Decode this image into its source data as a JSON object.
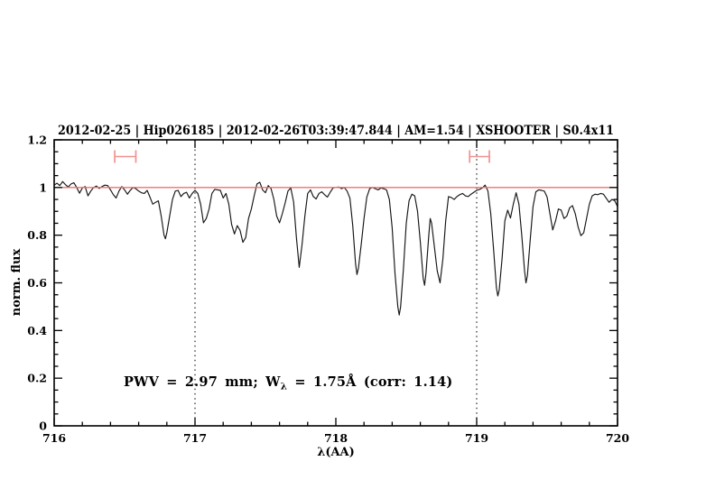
{
  "header": {
    "title": "2012-02-25 | Hip026185 | 2012-02-26T03:39:47.844 | AM=1.54 | XSHOOTER | S0.4x11",
    "title_color": "#0a0ad2",
    "segments": [
      "2012-02-25",
      "Hip026185",
      "2012-02-26T03:39:47.844",
      "AM=1.54",
      "XSHOOTER",
      "S0.4x11"
    ]
  },
  "annotation": {
    "part1": "PWV = 2.97 mm; W",
    "sub": "λ",
    "part2": " = 1.75Å (corr: 1.14)",
    "color": "#0a0ad2",
    "pwv_mm": 2.97,
    "equivalent_width_aa": 1.75,
    "corr": 1.14
  },
  "chart_data": {
    "type": "line",
    "title": "2012-02-25 | Hip026185 | 2012-02-26T03:39:47.844 | AM=1.54 | XSHOOTER | S0.4x11",
    "xlabel": "λ(AA)",
    "ylabel": "norm. flux",
    "xlim": [
      716,
      720
    ],
    "ylim": [
      0,
      1.2
    ],
    "x_ticks": [
      716,
      717,
      718,
      719,
      720
    ],
    "x_tick_labels": [
      "716",
      "717",
      "718",
      "719",
      "720"
    ],
    "x_minor_step": 0.2,
    "y_ticks": [
      0,
      0.2,
      0.4,
      0.6,
      0.8,
      1,
      1.2
    ],
    "y_tick_labels": [
      "0",
      "0.2",
      "0.4",
      "0.6",
      "0.8",
      "1",
      "1.2"
    ],
    "y_minor_step": 0.05,
    "grid": false,
    "legend": null,
    "frame_color": "#000000",
    "series": [
      {
        "name": "normalized-spectrum",
        "type": "line",
        "color": "#151515",
        "points": [
          [
            716.0,
            1.01
          ],
          [
            716.02,
            1.018
          ],
          [
            716.04,
            1.008
          ],
          [
            716.06,
            1.025
          ],
          [
            716.08,
            1.012
          ],
          [
            716.1,
            1.002
          ],
          [
            716.12,
            1.015
          ],
          [
            716.14,
            1.02
          ],
          [
            716.16,
            1.0
          ],
          [
            716.18,
            0.976
          ],
          [
            716.2,
            0.998
          ],
          [
            716.22,
            1.004
          ],
          [
            716.24,
            0.965
          ],
          [
            716.26,
            0.985
          ],
          [
            716.28,
            1.0
          ],
          [
            716.3,
            1.006
          ],
          [
            716.32,
            0.996
          ],
          [
            716.34,
            1.004
          ],
          [
            716.36,
            1.01
          ],
          [
            716.38,
            1.008
          ],
          [
            716.4,
            0.99
          ],
          [
            716.42,
            0.97
          ],
          [
            716.44,
            0.956
          ],
          [
            716.46,
            0.985
          ],
          [
            716.48,
            1.004
          ],
          [
            716.5,
            0.99
          ],
          [
            716.52,
            0.972
          ],
          [
            716.54,
            0.988
          ],
          [
            716.56,
            1.0
          ],
          [
            716.58,
            0.995
          ],
          [
            716.6,
            0.985
          ],
          [
            716.62,
            0.978
          ],
          [
            716.64,
            0.975
          ],
          [
            716.66,
            0.988
          ],
          [
            716.68,
            0.96
          ],
          [
            716.7,
            0.93
          ],
          [
            716.72,
            0.938
          ],
          [
            716.74,
            0.944
          ],
          [
            716.76,
            0.88
          ],
          [
            716.78,
            0.8
          ],
          [
            716.79,
            0.785
          ],
          [
            716.8,
            0.81
          ],
          [
            716.82,
            0.88
          ],
          [
            716.84,
            0.95
          ],
          [
            716.86,
            0.985
          ],
          [
            716.88,
            0.988
          ],
          [
            716.9,
            0.962
          ],
          [
            716.92,
            0.975
          ],
          [
            716.94,
            0.98
          ],
          [
            716.96,
            0.956
          ],
          [
            716.98,
            0.975
          ],
          [
            717.0,
            0.988
          ],
          [
            717.02,
            0.975
          ],
          [
            717.04,
            0.93
          ],
          [
            717.06,
            0.852
          ],
          [
            717.08,
            0.87
          ],
          [
            717.1,
            0.91
          ],
          [
            717.12,
            0.975
          ],
          [
            717.14,
            0.992
          ],
          [
            717.16,
            0.99
          ],
          [
            717.18,
            0.988
          ],
          [
            717.2,
            0.956
          ],
          [
            717.22,
            0.975
          ],
          [
            717.24,
            0.93
          ],
          [
            717.26,
            0.845
          ],
          [
            717.28,
            0.805
          ],
          [
            717.3,
            0.84
          ],
          [
            717.32,
            0.82
          ],
          [
            717.34,
            0.77
          ],
          [
            717.36,
            0.79
          ],
          [
            717.38,
            0.87
          ],
          [
            717.4,
            0.91
          ],
          [
            717.42,
            0.965
          ],
          [
            717.44,
            1.015
          ],
          [
            717.46,
            1.022
          ],
          [
            717.48,
            0.99
          ],
          [
            717.5,
            0.978
          ],
          [
            717.52,
            1.008
          ],
          [
            717.54,
            0.995
          ],
          [
            717.56,
            0.95
          ],
          [
            717.58,
            0.88
          ],
          [
            717.6,
            0.852
          ],
          [
            717.62,
            0.89
          ],
          [
            717.64,
            0.935
          ],
          [
            717.66,
            0.985
          ],
          [
            717.68,
            0.998
          ],
          [
            717.7,
            0.94
          ],
          [
            717.72,
            0.79
          ],
          [
            717.74,
            0.665
          ],
          [
            717.76,
            0.76
          ],
          [
            717.78,
            0.88
          ],
          [
            717.8,
            0.975
          ],
          [
            717.82,
            0.99
          ],
          [
            717.84,
            0.962
          ],
          [
            717.86,
            0.952
          ],
          [
            717.88,
            0.975
          ],
          [
            717.9,
            0.982
          ],
          [
            717.92,
            0.97
          ],
          [
            717.94,
            0.96
          ],
          [
            717.96,
            0.98
          ],
          [
            717.98,
            0.998
          ],
          [
            718.0,
            1.0
          ],
          [
            718.02,
            1.002
          ],
          [
            718.04,
            0.995
          ],
          [
            718.06,
            1.0
          ],
          [
            718.08,
            0.985
          ],
          [
            718.1,
            0.955
          ],
          [
            718.12,
            0.84
          ],
          [
            718.14,
            0.68
          ],
          [
            718.15,
            0.635
          ],
          [
            718.16,
            0.66
          ],
          [
            718.18,
            0.76
          ],
          [
            718.2,
            0.87
          ],
          [
            718.22,
            0.96
          ],
          [
            718.24,
            0.995
          ],
          [
            718.26,
            1.0
          ],
          [
            718.28,
            0.995
          ],
          [
            718.3,
            0.99
          ],
          [
            718.32,
            0.998
          ],
          [
            718.34,
            0.995
          ],
          [
            718.36,
            0.99
          ],
          [
            718.38,
            0.95
          ],
          [
            718.4,
            0.83
          ],
          [
            718.42,
            0.64
          ],
          [
            718.44,
            0.5
          ],
          [
            718.45,
            0.465
          ],
          [
            718.46,
            0.5
          ],
          [
            718.48,
            0.66
          ],
          [
            718.5,
            0.85
          ],
          [
            718.52,
            0.945
          ],
          [
            718.54,
            0.972
          ],
          [
            718.56,
            0.965
          ],
          [
            718.58,
            0.9
          ],
          [
            718.6,
            0.77
          ],
          [
            718.62,
            0.62
          ],
          [
            718.63,
            0.59
          ],
          [
            718.64,
            0.64
          ],
          [
            718.66,
            0.8
          ],
          [
            718.67,
            0.87
          ],
          [
            718.68,
            0.85
          ],
          [
            718.7,
            0.75
          ],
          [
            718.72,
            0.65
          ],
          [
            718.74,
            0.6
          ],
          [
            718.76,
            0.7
          ],
          [
            718.78,
            0.86
          ],
          [
            718.8,
            0.962
          ],
          [
            718.82,
            0.958
          ],
          [
            718.84,
            0.95
          ],
          [
            718.86,
            0.962
          ],
          [
            718.88,
            0.97
          ],
          [
            718.9,
            0.975
          ],
          [
            718.92,
            0.965
          ],
          [
            718.94,
            0.962
          ],
          [
            718.96,
            0.972
          ],
          [
            718.98,
            0.98
          ],
          [
            719.0,
            0.988
          ],
          [
            719.02,
            0.992
          ],
          [
            719.04,
            0.998
          ],
          [
            719.06,
            1.01
          ],
          [
            719.08,
            0.985
          ],
          [
            719.1,
            0.89
          ],
          [
            719.12,
            0.74
          ],
          [
            719.14,
            0.58
          ],
          [
            719.15,
            0.545
          ],
          [
            719.16,
            0.57
          ],
          [
            719.18,
            0.7
          ],
          [
            719.2,
            0.86
          ],
          [
            719.22,
            0.905
          ],
          [
            719.24,
            0.872
          ],
          [
            719.26,
            0.93
          ],
          [
            719.28,
            0.978
          ],
          [
            719.3,
            0.93
          ],
          [
            719.32,
            0.8
          ],
          [
            719.34,
            0.65
          ],
          [
            719.35,
            0.6
          ],
          [
            719.36,
            0.63
          ],
          [
            719.38,
            0.78
          ],
          [
            719.4,
            0.92
          ],
          [
            719.42,
            0.982
          ],
          [
            719.44,
            0.99
          ],
          [
            719.46,
            0.988
          ],
          [
            719.48,
            0.985
          ],
          [
            719.5,
            0.96
          ],
          [
            719.52,
            0.89
          ],
          [
            719.54,
            0.822
          ],
          [
            719.56,
            0.86
          ],
          [
            719.58,
            0.91
          ],
          [
            719.6,
            0.905
          ],
          [
            719.62,
            0.87
          ],
          [
            719.64,
            0.88
          ],
          [
            719.66,
            0.915
          ],
          [
            719.68,
            0.924
          ],
          [
            719.7,
            0.89
          ],
          [
            719.72,
            0.835
          ],
          [
            719.74,
            0.798
          ],
          [
            719.76,
            0.81
          ],
          [
            719.78,
            0.87
          ],
          [
            719.8,
            0.93
          ],
          [
            719.82,
            0.965
          ],
          [
            719.84,
            0.972
          ],
          [
            719.86,
            0.97
          ],
          [
            719.88,
            0.975
          ],
          [
            719.9,
            0.972
          ],
          [
            719.92,
            0.955
          ],
          [
            719.94,
            0.938
          ],
          [
            719.96,
            0.95
          ],
          [
            719.98,
            0.945
          ],
          [
            720.0,
            0.92
          ]
        ]
      },
      {
        "name": "continuum-level",
        "type": "hline",
        "color": "#e4756e",
        "y": 1.0
      }
    ],
    "vlines": [
      {
        "name": "integration-limit-left-line",
        "x": 717,
        "style": "dotted",
        "color": "#222222"
      },
      {
        "name": "integration-limit-right-line",
        "x": 719,
        "style": "dotted",
        "color": "#222222"
      }
    ],
    "error_bars": [
      {
        "name": "range-marker-left",
        "x_center": 716.5,
        "x_min": 716.43,
        "x_max": 716.58,
        "y": 1.13,
        "color": "#f0928f"
      },
      {
        "name": "range-marker-right",
        "x_center": 719.02,
        "x_min": 718.95,
        "x_max": 719.09,
        "y": 1.13,
        "color": "#f0928f"
      }
    ]
  }
}
